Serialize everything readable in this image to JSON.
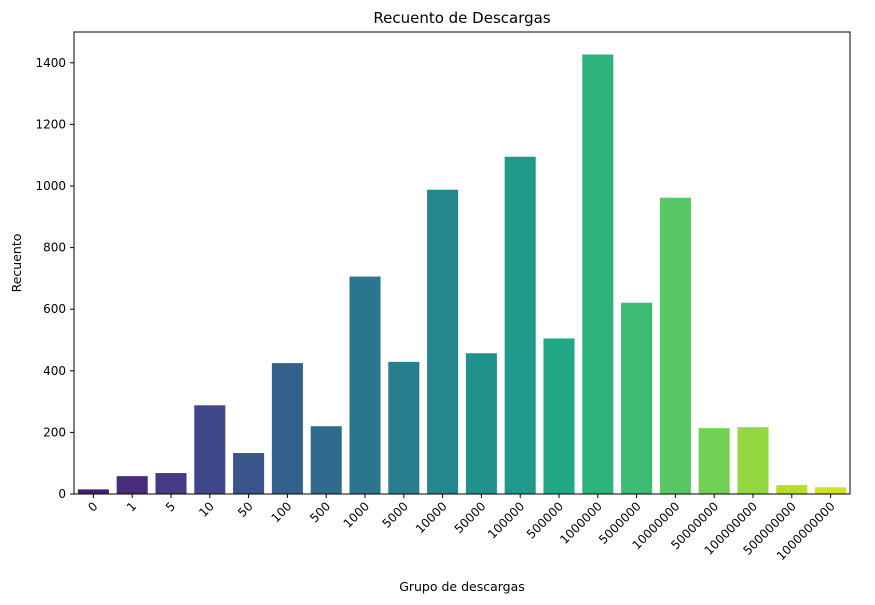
{
  "chart_data": {
    "type": "bar",
    "title": "Recuento de Descargas",
    "xlabel": "Grupo de descargas",
    "ylabel": "Recuento",
    "categories": [
      "0",
      "1",
      "5",
      "10",
      "50",
      "100",
      "500",
      "1000",
      "5000",
      "10000",
      "50000",
      "100000",
      "500000",
      "1000000",
      "5000000",
      "10000000",
      "50000000",
      "100000000",
      "500000000",
      "1000000000"
    ],
    "values": [
      15,
      58,
      68,
      288,
      133,
      425,
      220,
      706,
      429,
      988,
      457,
      1095,
      505,
      1427,
      621,
      962,
      214,
      217,
      29,
      22
    ],
    "ylim": [
      0,
      1500
    ],
    "yticks": [
      0,
      200,
      400,
      600,
      800,
      1000,
      1200,
      1400
    ],
    "grid": false,
    "legend": "none",
    "palette": "viridis",
    "colors": [
      "#481c6e",
      "#472c7a",
      "#443b84",
      "#3f4889",
      "#3a548c",
      "#34608d",
      "#306b8e",
      "#2c758e",
      "#287d8e",
      "#24878e",
      "#21918c",
      "#1f9a8a",
      "#22a785",
      "#2eb37c",
      "#3dbc74",
      "#58c765",
      "#73d056",
      "#93d741",
      "#b5de2b",
      "#d2e21b"
    ]
  }
}
